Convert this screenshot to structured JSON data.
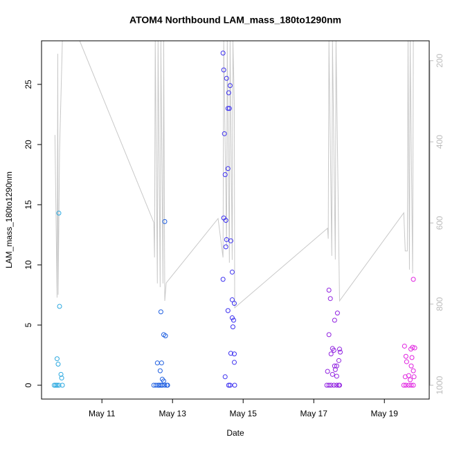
{
  "chart_data": {
    "type": "scatter",
    "title": "ATOM4 Northbound LAM_mass_180to1290nm",
    "x_label": "Date",
    "y_label": "LAM_mass_180to1290nm",
    "xlim": [
      9.29,
      20.27
    ],
    "xticks": [
      {
        "value": 11,
        "label": "May 11"
      },
      {
        "value": 13,
        "label": "May 13"
      },
      {
        "value": 15,
        "label": "May 15"
      },
      {
        "value": 17,
        "label": "May 17"
      },
      {
        "value": 19,
        "label": "May 19"
      }
    ],
    "ylim": [
      -1.15,
      28.62
    ],
    "yticks": [
      0,
      5,
      10,
      15,
      20,
      25
    ],
    "y2lim": [
      1034,
      151
    ],
    "y2ticks": [
      200,
      400,
      600,
      800,
      1000
    ],
    "y2_color": "#bbbbbb",
    "series": [
      {
        "color": "#29a8e0",
        "x": [
          9.78,
          9.8,
          9.73,
          9.76,
          9.84,
          9.86,
          9.65,
          9.69,
          9.73,
          9.78,
          9.88
        ],
        "values": [
          14.3,
          6.55,
          2.2,
          1.75,
          0.9,
          0.6,
          0,
          0,
          0,
          0,
          0
        ]
      },
      {
        "color": "#1f5fe0",
        "x": [
          12.78,
          12.67,
          12.75,
          12.8,
          12.57,
          12.69,
          12.65,
          12.71,
          12.75,
          12.47,
          12.53,
          12.59,
          12.63,
          12.67,
          12.71,
          12.78,
          12.84,
          12.86
        ],
        "values": [
          13.6,
          6.1,
          4.2,
          4.1,
          1.85,
          1.85,
          1.2,
          0.5,
          0.35,
          0,
          0,
          0,
          0,
          0,
          0,
          0,
          0,
          0
        ]
      },
      {
        "color": "#3a2ef0",
        "x": [
          14.43,
          14.45,
          14.53,
          14.63,
          14.59,
          14.57,
          14.61,
          14.47,
          14.57,
          14.49,
          14.45,
          14.51,
          14.53,
          14.65,
          14.51,
          14.69,
          14.43,
          14.69,
          14.75,
          14.57,
          14.69,
          14.73,
          14.71,
          14.65,
          14.75,
          14.75,
          14.49,
          14.59,
          14.63,
          14.76
        ],
        "values": [
          27.6,
          26.2,
          25.5,
          24.9,
          24.3,
          23.0,
          23.0,
          20.9,
          18.0,
          17.5,
          13.9,
          13.7,
          12.1,
          12.0,
          11.5,
          9.4,
          8.8,
          7.1,
          6.8,
          6.2,
          5.6,
          5.4,
          4.85,
          2.65,
          2.6,
          1.9,
          0.7,
          0,
          0,
          0
        ]
      },
      {
        "color": "#9020e0",
        "x": [
          17.43,
          17.47,
          17.67,
          17.59,
          17.43,
          17.53,
          17.73,
          17.57,
          17.75,
          17.49,
          17.71,
          17.59,
          17.65,
          17.61,
          17.39,
          17.53,
          17.65,
          17.37,
          17.43,
          17.49,
          17.57,
          17.65,
          17.71,
          17.73
        ],
        "values": [
          7.9,
          7.2,
          6.0,
          5.4,
          4.2,
          3.05,
          3.0,
          2.9,
          2.75,
          2.6,
          2.05,
          1.6,
          1.6,
          1.3,
          1.15,
          0.9,
          0.75,
          0,
          0,
          0,
          0,
          0,
          0,
          0
        ]
      },
      {
        "color": "#e020e0",
        "x": [
          19.82,
          19.57,
          19.8,
          19.75,
          19.86,
          19.61,
          19.78,
          19.63,
          19.76,
          19.82,
          19.69,
          19.59,
          19.84,
          19.73,
          19.55,
          19.61,
          19.69,
          19.76,
          19.82
        ],
        "values": [
          8.8,
          3.25,
          3.15,
          3.0,
          3.1,
          2.4,
          2.3,
          1.95,
          1.6,
          1.2,
          0.8,
          0.7,
          0.7,
          0.45,
          0,
          0,
          0,
          0,
          0
        ]
      },
      {
        "type": "line",
        "axis": "y2",
        "color": "#c8c8c8",
        "x": [
          9.67,
          9.73,
          9.75,
          9.76,
          9.8,
          9.88,
          10.37,
          12.47,
          12.49,
          12.51,
          12.57,
          12.59,
          12.65,
          12.67,
          12.73,
          12.75,
          12.78,
          12.82,
          14.29,
          14.43,
          14.45,
          14.53,
          14.55,
          14.61,
          14.63,
          14.69,
          14.71,
          14.75,
          14.76,
          17.39,
          17.41,
          17.43,
          17.51,
          17.53,
          17.61,
          17.63,
          17.73,
          19.55,
          19.59,
          19.65,
          19.67,
          19.71,
          19.73,
          19.8,
          19.82,
          19.86
        ],
        "values": [
          383,
          784,
          183,
          777,
          425,
          151,
          151,
          599,
          685,
          151,
          749,
          151,
          758,
          151,
          749,
          151,
          792,
          748,
          589,
          685,
          151,
          659,
          151,
          698,
          151,
          691,
          151,
          306,
          809,
          613,
          639,
          151,
          681,
          151,
          690,
          151,
          792,
          575,
          669,
          669,
          151,
          715,
          151,
          724,
          151,
          151
        ]
      }
    ]
  }
}
